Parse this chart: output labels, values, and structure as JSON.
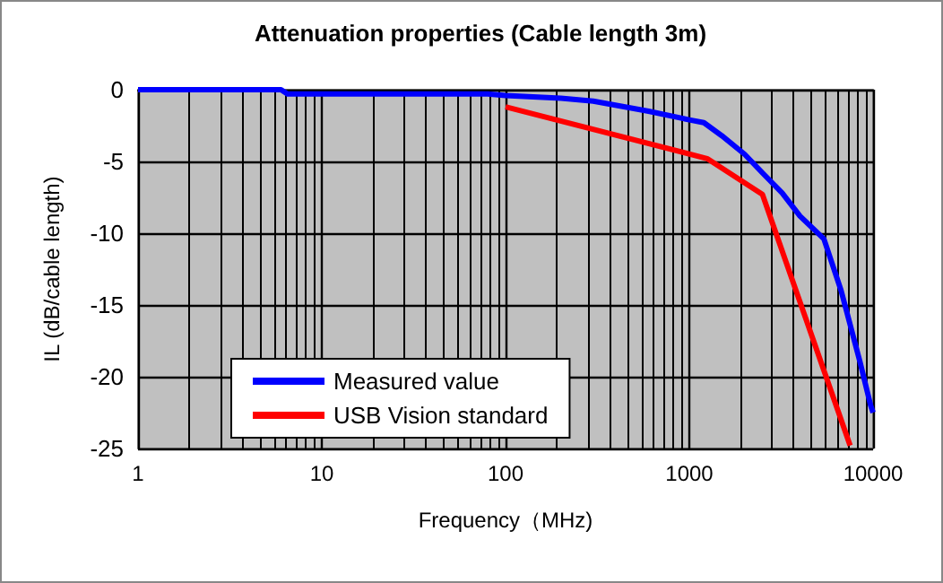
{
  "chart_data": {
    "type": "line",
    "title": "Attenuation properties (Cable length 3m)",
    "xlabel": "Frequency（MHz)",
    "ylabel": "IL (dB/cable length)",
    "log": "x",
    "xlim": [
      1,
      10000
    ],
    "xticks": [
      1,
      10,
      100,
      1000,
      10000
    ],
    "ylim": [
      -25,
      0
    ],
    "yticks": [
      -25,
      -20,
      -15,
      -10,
      -5,
      0
    ],
    "grid": true,
    "legend": "bottom left",
    "marker": "none",
    "line_style": "solid",
    "series": [
      {
        "name": "Measured value",
        "color": "#0000ff",
        "x": [
          1,
          6,
          6.5,
          80,
          100,
          200,
          300,
          600,
          1000,
          1200,
          1500,
          2000,
          2500,
          3200,
          4000,
          5400,
          6700,
          8500,
          9700,
          10000
        ],
        "values": [
          0,
          0,
          -0.3,
          -0.3,
          -0.4,
          -0.6,
          -0.8,
          -1.5,
          -2.1,
          -2.3,
          -3.2,
          -4.5,
          -5.8,
          -7.2,
          -8.8,
          -10.4,
          -14,
          -19,
          -22,
          -22.5
        ]
      },
      {
        "name": "USB Vision standard",
        "color": "#ff0000",
        "x": [
          100,
          1250,
          2500,
          7500
        ],
        "values": [
          -1.2,
          -4.8,
          -7.3,
          -24.8
        ]
      }
    ]
  }
}
